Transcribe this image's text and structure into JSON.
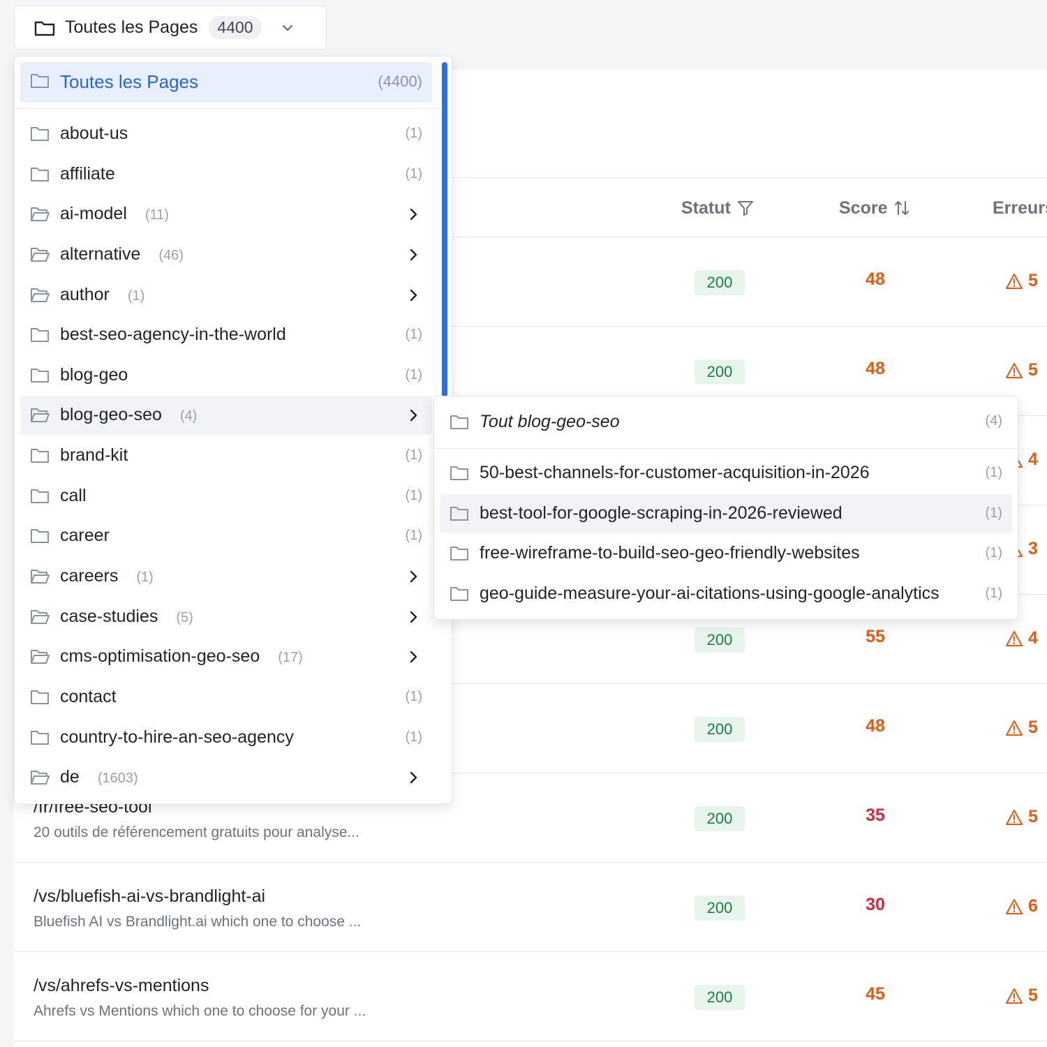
{
  "filter_trigger": {
    "icon": "folder-icon",
    "label": "Toutes les Pages",
    "count": "4400",
    "chevron": "chevron-down-icon"
  },
  "table": {
    "columns": {
      "statut": "Statut",
      "score": "Score",
      "erreurs": "Erreurs"
    },
    "rows": [
      {
        "path": "",
        "desc": "",
        "status": "200",
        "score": "48",
        "score_color": "#e8590c",
        "errors": "5"
      },
      {
        "path": "",
        "desc": "",
        "status": "200",
        "score": "48",
        "score_color": "#e8590c",
        "errors": "5"
      },
      {
        "path": "",
        "desc": "",
        "status": "",
        "score": "",
        "score_color": "",
        "errors": "4"
      },
      {
        "path": "",
        "desc": "",
        "status": "",
        "score": "",
        "score_color": "",
        "errors": "3"
      },
      {
        "path": "",
        "desc": "",
        "status": "200",
        "score": "55",
        "score_color": "#e8590c",
        "errors": "4"
      },
      {
        "path": "",
        "desc": "",
        "status": "200",
        "score": "48",
        "score_color": "#e8590c",
        "errors": "5"
      },
      {
        "path": "/fr/free-seo-tool",
        "desc": "20 outils de référencement gratuits pour analyse...",
        "status": "200",
        "score": "35",
        "score_color": "#d9253a",
        "errors": "5"
      },
      {
        "path": "/vs/bluefish-ai-vs-brandlight-ai",
        "desc": "Bluefish AI vs Brandlight.ai which one to choose ...",
        "status": "200",
        "score": "30",
        "score_color": "#d9253a",
        "errors": "6"
      },
      {
        "path": "/vs/ahrefs-vs-mentions",
        "desc": "Ahrefs vs Mentions which one to choose for your ...",
        "status": "200",
        "score": "45",
        "score_color": "#e8590c",
        "errors": "5"
      }
    ]
  },
  "dropdown": {
    "header": {
      "label": "Toutes les Pages",
      "count": "(4400)"
    },
    "items": [
      {
        "label": "about-us",
        "count": "(1)",
        "has_children": false
      },
      {
        "label": "affiliate",
        "count": "(1)",
        "has_children": false
      },
      {
        "label": "ai-model",
        "count": "(11)",
        "has_children": true
      },
      {
        "label": "alternative",
        "count": "(46)",
        "has_children": true
      },
      {
        "label": "author",
        "count": "(1)",
        "has_children": true
      },
      {
        "label": "best-seo-agency-in-the-world",
        "count": "(1)",
        "has_children": false
      },
      {
        "label": "blog-geo",
        "count": "(1)",
        "has_children": false
      },
      {
        "label": "blog-geo-seo",
        "count": "(4)",
        "has_children": true,
        "active": true
      },
      {
        "label": "brand-kit",
        "count": "(1)",
        "has_children": false
      },
      {
        "label": "call",
        "count": "(1)",
        "has_children": false
      },
      {
        "label": "career",
        "count": "(1)",
        "has_children": false
      },
      {
        "label": "careers",
        "count": "(1)",
        "has_children": true
      },
      {
        "label": "case-studies",
        "count": "(5)",
        "has_children": true
      },
      {
        "label": "cms-optimisation-geo-seo",
        "count": "(17)",
        "has_children": true
      },
      {
        "label": "contact",
        "count": "(1)",
        "has_children": false
      },
      {
        "label": "country-to-hire-an-seo-agency",
        "count": "(1)",
        "has_children": false
      },
      {
        "label": "de",
        "count": "(1603)",
        "has_children": true
      }
    ]
  },
  "submenu": {
    "header": {
      "label": "Tout blog-geo-seo",
      "count": "(4)"
    },
    "items": [
      {
        "label": "50-best-channels-for-customer-acquisition-in-2026",
        "count": "(1)"
      },
      {
        "label": "best-tool-for-google-scraping-in-2026-reviewed",
        "count": "(1)",
        "hover": true
      },
      {
        "label": "free-wireframe-to-build-seo-geo-friendly-websites",
        "count": "(1)"
      },
      {
        "label": "geo-guide-measure-your-ai-citations-using-google-analytics",
        "count": "(1)"
      }
    ]
  },
  "colors": {
    "accent": "#2563eb",
    "scrollbar": "#2f6fe4",
    "status_ok_bg": "#e8f5ec",
    "status_ok_text": "#16813d",
    "warning": "#e8590c",
    "danger": "#d9253a"
  },
  "icons": {
    "folder": "folder-icon",
    "folder_open": "folder-open-icon",
    "chevron_right": "chevron-right-icon",
    "filter": "filter-icon",
    "sort": "sort-icon",
    "warning": "warning-icon"
  }
}
